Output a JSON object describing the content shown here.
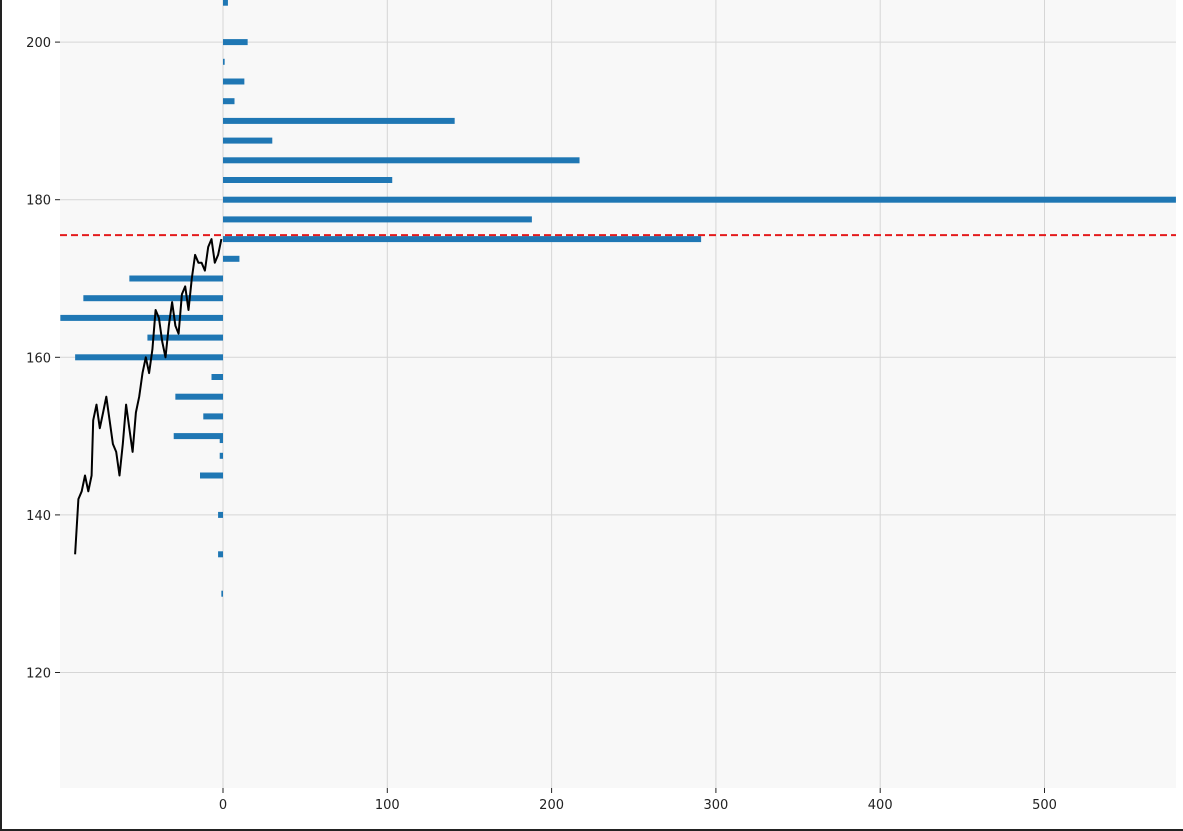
{
  "chart_data": {
    "type": "bar",
    "orientation": "horizontal",
    "title": "",
    "xlabel": "",
    "ylabel": "",
    "xlim": [
      -100,
      580
    ],
    "ylim": [
      105,
      205
    ],
    "grid": true,
    "colors": {
      "plot_bg": "#f8f8f8",
      "grid": "#d6d6d6",
      "bar": "#1f77b4",
      "line": "#000000",
      "reference": "#e41a1c"
    },
    "x_ticks": [
      0,
      100,
      200,
      300,
      400,
      500
    ],
    "y_ticks": [
      120,
      140,
      160,
      180,
      200
    ],
    "bars": [
      {
        "y": 130.0,
        "value": -1
      },
      {
        "y": 135.0,
        "value": -3
      },
      {
        "y": 140.0,
        "value": -3
      },
      {
        "y": 145.0,
        "value": -14
      },
      {
        "y": 147.5,
        "value": -2
      },
      {
        "y": 149.5,
        "value": -2
      },
      {
        "y": 150.0,
        "value": -30
      },
      {
        "y": 152.5,
        "value": -12
      },
      {
        "y": 155.0,
        "value": -29
      },
      {
        "y": 157.5,
        "value": -7
      },
      {
        "y": 160.0,
        "value": -90
      },
      {
        "y": 162.5,
        "value": -46
      },
      {
        "y": 165.0,
        "value": -99
      },
      {
        "y": 167.5,
        "value": -85
      },
      {
        "y": 170.0,
        "value": -57
      },
      {
        "y": 172.5,
        "value": 10
      },
      {
        "y": 175.0,
        "value": 291
      },
      {
        "y": 177.5,
        "value": 188
      },
      {
        "y": 180.0,
        "value": 580
      },
      {
        "y": 182.5,
        "value": 103
      },
      {
        "y": 185.0,
        "value": 217
      },
      {
        "y": 187.5,
        "value": 30
      },
      {
        "y": 190.0,
        "value": 141
      },
      {
        "y": 192.5,
        "value": 7
      },
      {
        "y": 195.0,
        "value": 13
      },
      {
        "y": 197.5,
        "value": 1
      },
      {
        "y": 200.0,
        "value": 15
      },
      {
        "y": 205.0,
        "value": 3
      }
    ],
    "price_series": {
      "type": "line",
      "points": [
        [
          -90,
          135
        ],
        [
          -88,
          142
        ],
        [
          -86,
          143
        ],
        [
          -84,
          145
        ],
        [
          -82,
          143
        ],
        [
          -80,
          145
        ],
        [
          -79,
          152
        ],
        [
          -77,
          154
        ],
        [
          -75,
          151
        ],
        [
          -73,
          153
        ],
        [
          -71,
          155
        ],
        [
          -69,
          152
        ],
        [
          -67,
          149
        ],
        [
          -65,
          148
        ],
        [
          -63,
          145
        ],
        [
          -61,
          149
        ],
        [
          -59,
          154
        ],
        [
          -57,
          151
        ],
        [
          -55,
          148
        ],
        [
          -53,
          153
        ],
        [
          -51,
          155
        ],
        [
          -49,
          158
        ],
        [
          -47,
          160
        ],
        [
          -45,
          158
        ],
        [
          -43,
          161
        ],
        [
          -41,
          166
        ],
        [
          -39,
          165
        ],
        [
          -37,
          162
        ],
        [
          -35,
          160
        ],
        [
          -33,
          164
        ],
        [
          -31,
          167
        ],
        [
          -29,
          164
        ],
        [
          -27,
          163
        ],
        [
          -25,
          168
        ],
        [
          -23,
          169
        ],
        [
          -21,
          166
        ],
        [
          -19,
          170
        ],
        [
          -17,
          173
        ],
        [
          -15,
          172
        ],
        [
          -13,
          172
        ],
        [
          -11,
          171
        ],
        [
          -9,
          174
        ],
        [
          -7,
          175
        ],
        [
          -5,
          172
        ],
        [
          -3,
          173
        ],
        [
          -1,
          175
        ]
      ]
    },
    "reference_line": {
      "y": 175.5,
      "style": "dashed"
    }
  }
}
